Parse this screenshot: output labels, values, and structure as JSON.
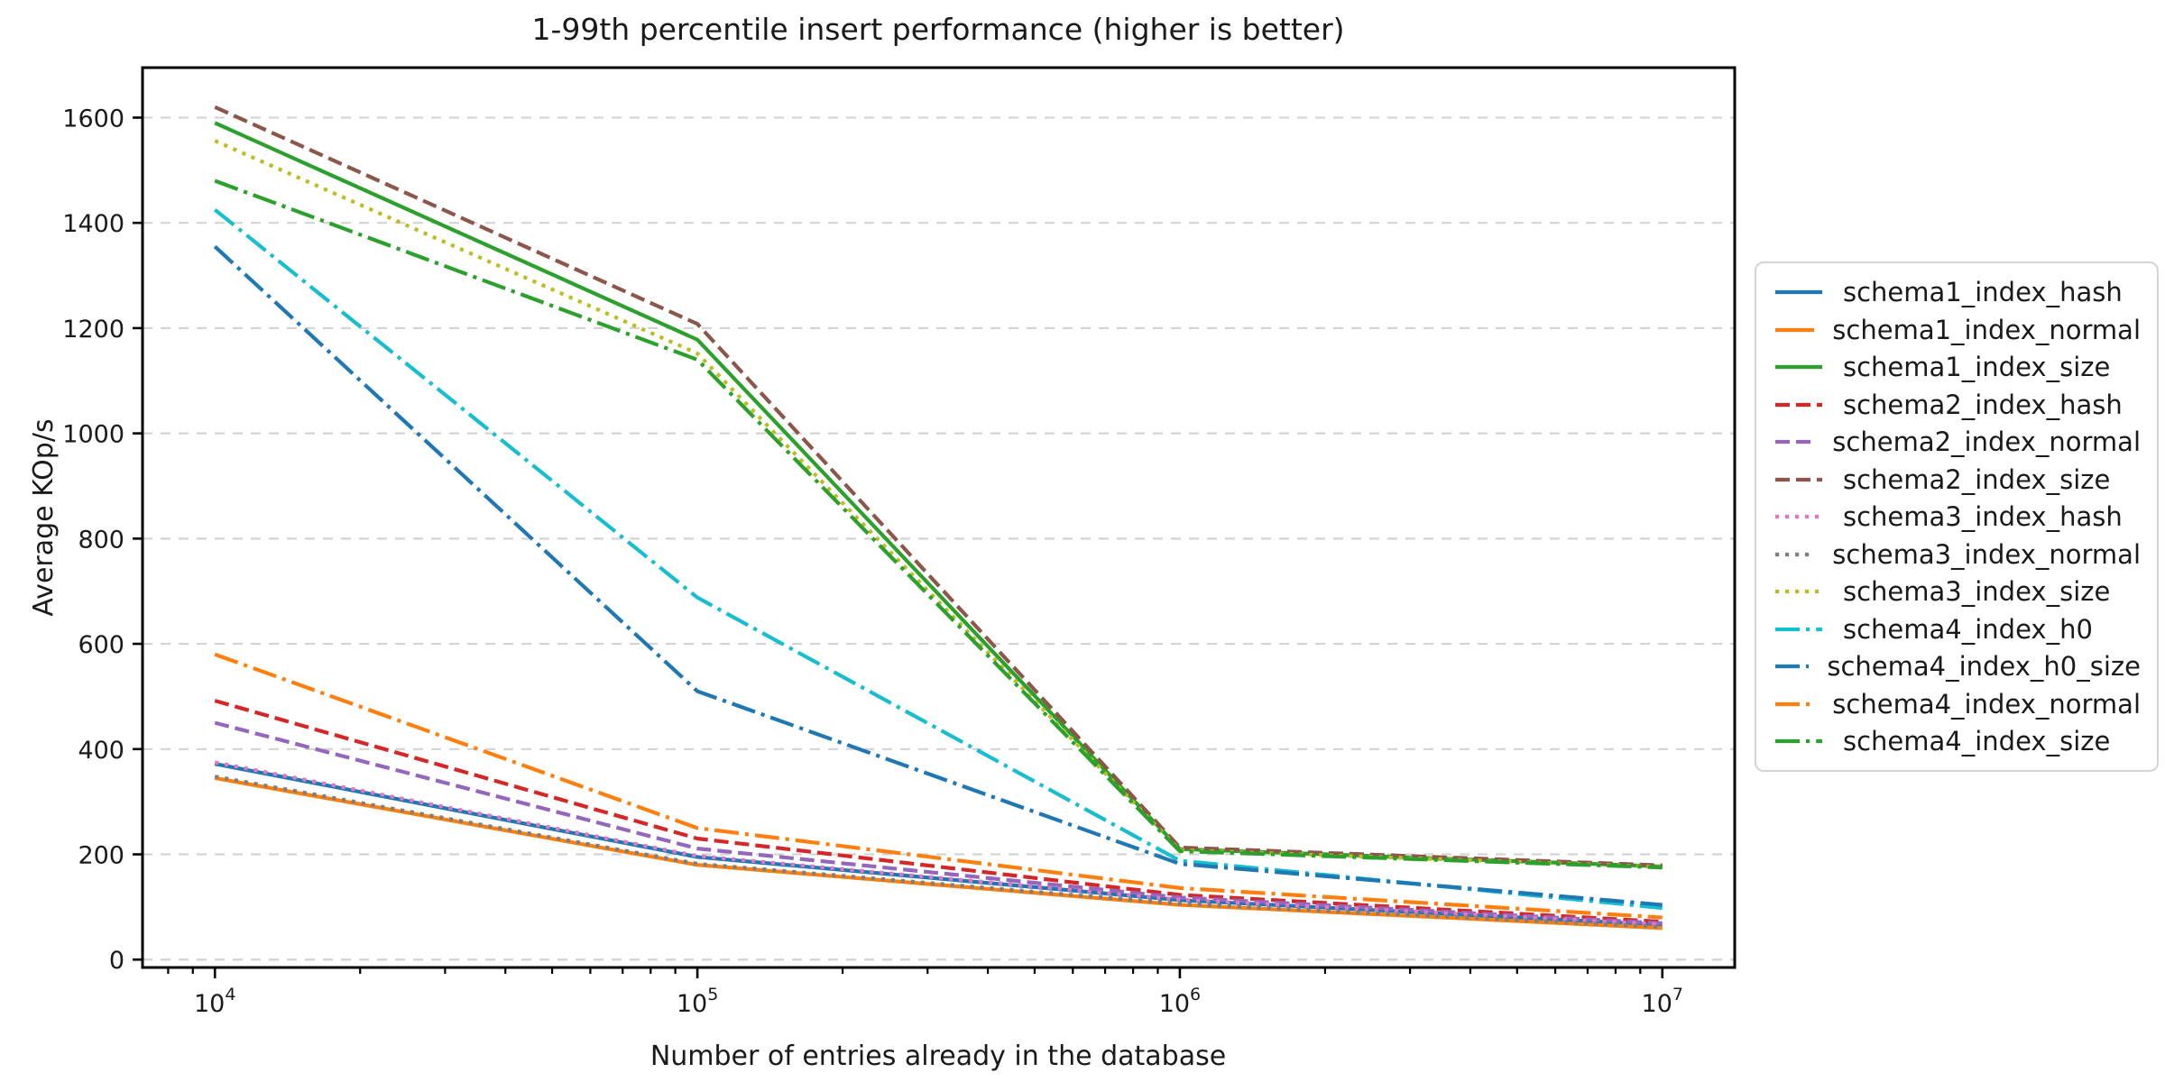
{
  "chart_data": {
    "type": "line",
    "title": "1-99th percentile insert performance (higher is better)",
    "xlabel": "Number of entries already in the database",
    "ylabel": "Average KOp/s",
    "x_scale": "log",
    "grid": {
      "axis": "y",
      "style": "dashed",
      "color": "#d3d3d3"
    },
    "legend_position": "right-outside",
    "legend_border_color": "#d4d4d4",
    "x": [
      10000,
      100000,
      1000000,
      10000000
    ],
    "x_tick_labels": [
      "10^4",
      "10^5",
      "10^6",
      "10^7"
    ],
    "y_ticks": [
      0,
      200,
      400,
      600,
      800,
      1000,
      1200,
      1400,
      1600
    ],
    "xlim_log10": [
      3.85,
      7.15
    ],
    "ylim": [
      -15,
      1695
    ],
    "series": [
      {
        "name": "schema1_index_hash",
        "color": "#1f77b4",
        "linestyle": "solid",
        "values": [
          372,
          195,
          113,
          66
        ]
      },
      {
        "name": "schema1_index_normal",
        "color": "#ff7f0e",
        "linestyle": "solid",
        "values": [
          345,
          180,
          104,
          60
        ]
      },
      {
        "name": "schema1_index_size",
        "color": "#2ca02c",
        "linestyle": "solid",
        "values": [
          1590,
          1178,
          210,
          177
        ]
      },
      {
        "name": "schema2_index_hash",
        "color": "#d62728",
        "linestyle": "dashed",
        "values": [
          492,
          230,
          123,
          72
        ]
      },
      {
        "name": "schema2_index_normal",
        "color": "#9467bd",
        "linestyle": "dashed",
        "values": [
          450,
          211,
          118,
          69
        ]
      },
      {
        "name": "schema2_index_size",
        "color": "#8c564b",
        "linestyle": "dashed",
        "values": [
          1620,
          1208,
          213,
          179
        ]
      },
      {
        "name": "schema3_index_hash",
        "color": "#e377c2",
        "linestyle": "dotted",
        "values": [
          375,
          197,
          114,
          67
        ]
      },
      {
        "name": "schema3_index_normal",
        "color": "#7f7f7f",
        "linestyle": "dotted",
        "values": [
          348,
          182,
          106,
          62
        ]
      },
      {
        "name": "schema3_index_size",
        "color": "#bcbd22",
        "linestyle": "dotted",
        "values": [
          1556,
          1152,
          208,
          176
        ]
      },
      {
        "name": "schema4_index_h0",
        "color": "#17becf",
        "linestyle": "dashdot",
        "values": [
          1425,
          688,
          188,
          98
        ]
      },
      {
        "name": "schema4_index_h0_size",
        "color": "#1f77b4",
        "linestyle": "dashdot",
        "values": [
          1355,
          510,
          182,
          104
        ]
      },
      {
        "name": "schema4_index_normal",
        "color": "#ff7f0e",
        "linestyle": "dashdot",
        "values": [
          580,
          250,
          136,
          80
        ]
      },
      {
        "name": "schema4_index_size",
        "color": "#2ca02c",
        "linestyle": "dashdot",
        "values": [
          1480,
          1140,
          206,
          175
        ]
      }
    ]
  }
}
